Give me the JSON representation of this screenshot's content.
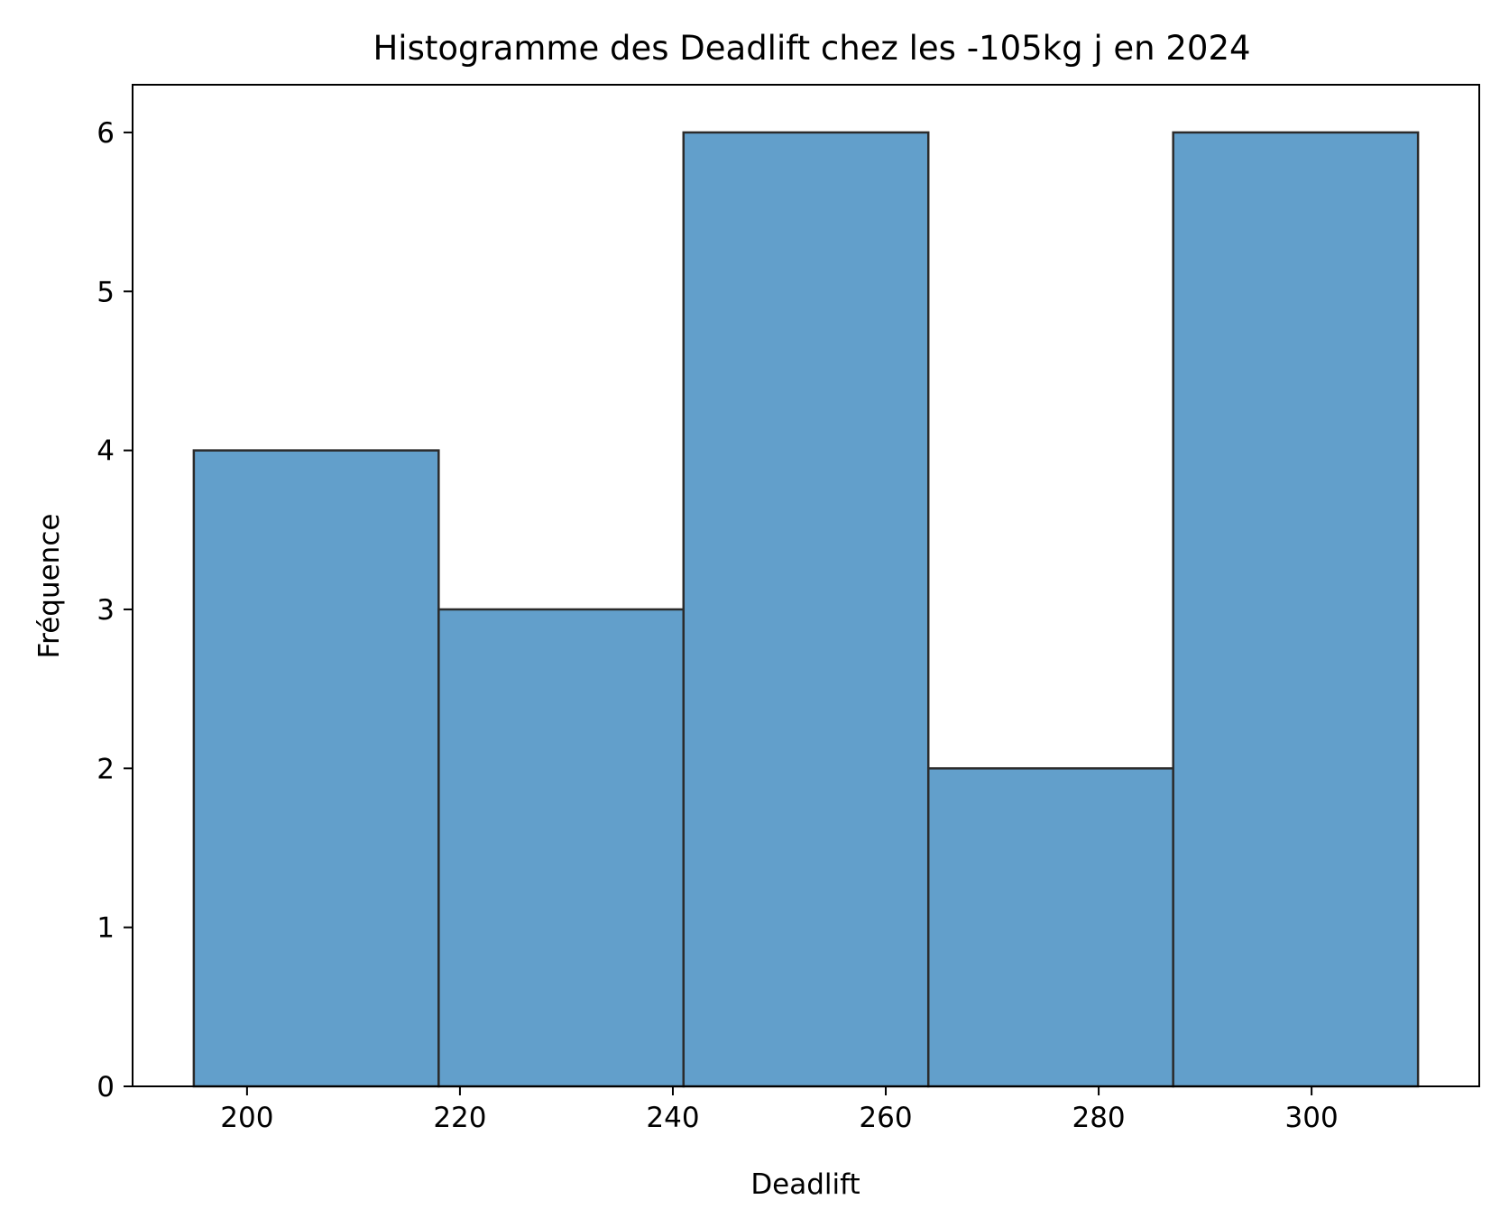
{
  "chart_data": {
    "type": "bar",
    "title": "Histogramme des Deadlift chez les -105kg j en 2024",
    "xlabel": "Deadlift",
    "ylabel": "Fréquence",
    "bins": [
      {
        "start": 195,
        "end": 218,
        "count": 4
      },
      {
        "start": 218,
        "end": 241,
        "count": 3
      },
      {
        "start": 241,
        "end": 264,
        "count": 6
      },
      {
        "start": 264,
        "end": 287,
        "count": 2
      },
      {
        "start": 287,
        "end": 310,
        "count": 6
      }
    ],
    "xlim": [
      189.25,
      315.75
    ],
    "ylim": [
      0,
      6.3
    ],
    "xticks": [
      200,
      220,
      240,
      260,
      280,
      300
    ],
    "yticks": [
      0,
      1,
      2,
      3,
      4,
      5,
      6
    ],
    "grid": false,
    "bar_color": "#629fcb",
    "edge_color": "#2b2b2b"
  }
}
